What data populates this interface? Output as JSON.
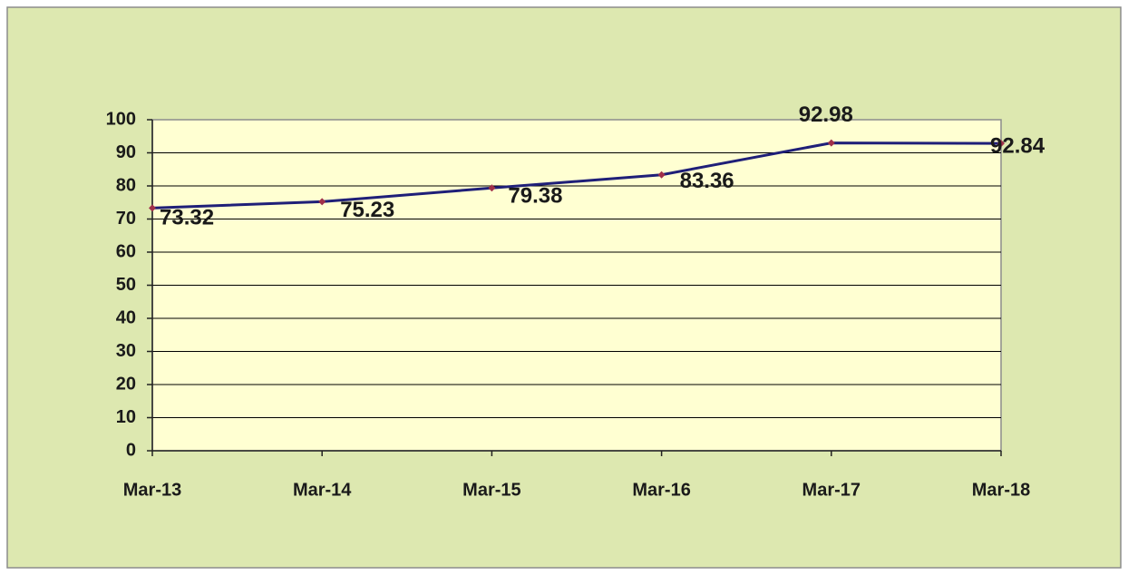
{
  "chart_data": {
    "type": "line",
    "categories": [
      "Mar-13",
      "Mar-14",
      "Mar-15",
      "Mar-16",
      "Mar-17",
      "Mar-18"
    ],
    "series": [
      {
        "name": null,
        "color": "#1f1f78",
        "marker_color": "#a0304a",
        "values": [
          73.32,
          75.23,
          79.38,
          83.36,
          92.98,
          92.84
        ]
      }
    ],
    "ylim": [
      0,
      100
    ],
    "yticks": [
      0,
      10,
      20,
      30,
      40,
      50,
      60,
      70,
      80,
      90,
      100
    ],
    "grid": true
  }
}
